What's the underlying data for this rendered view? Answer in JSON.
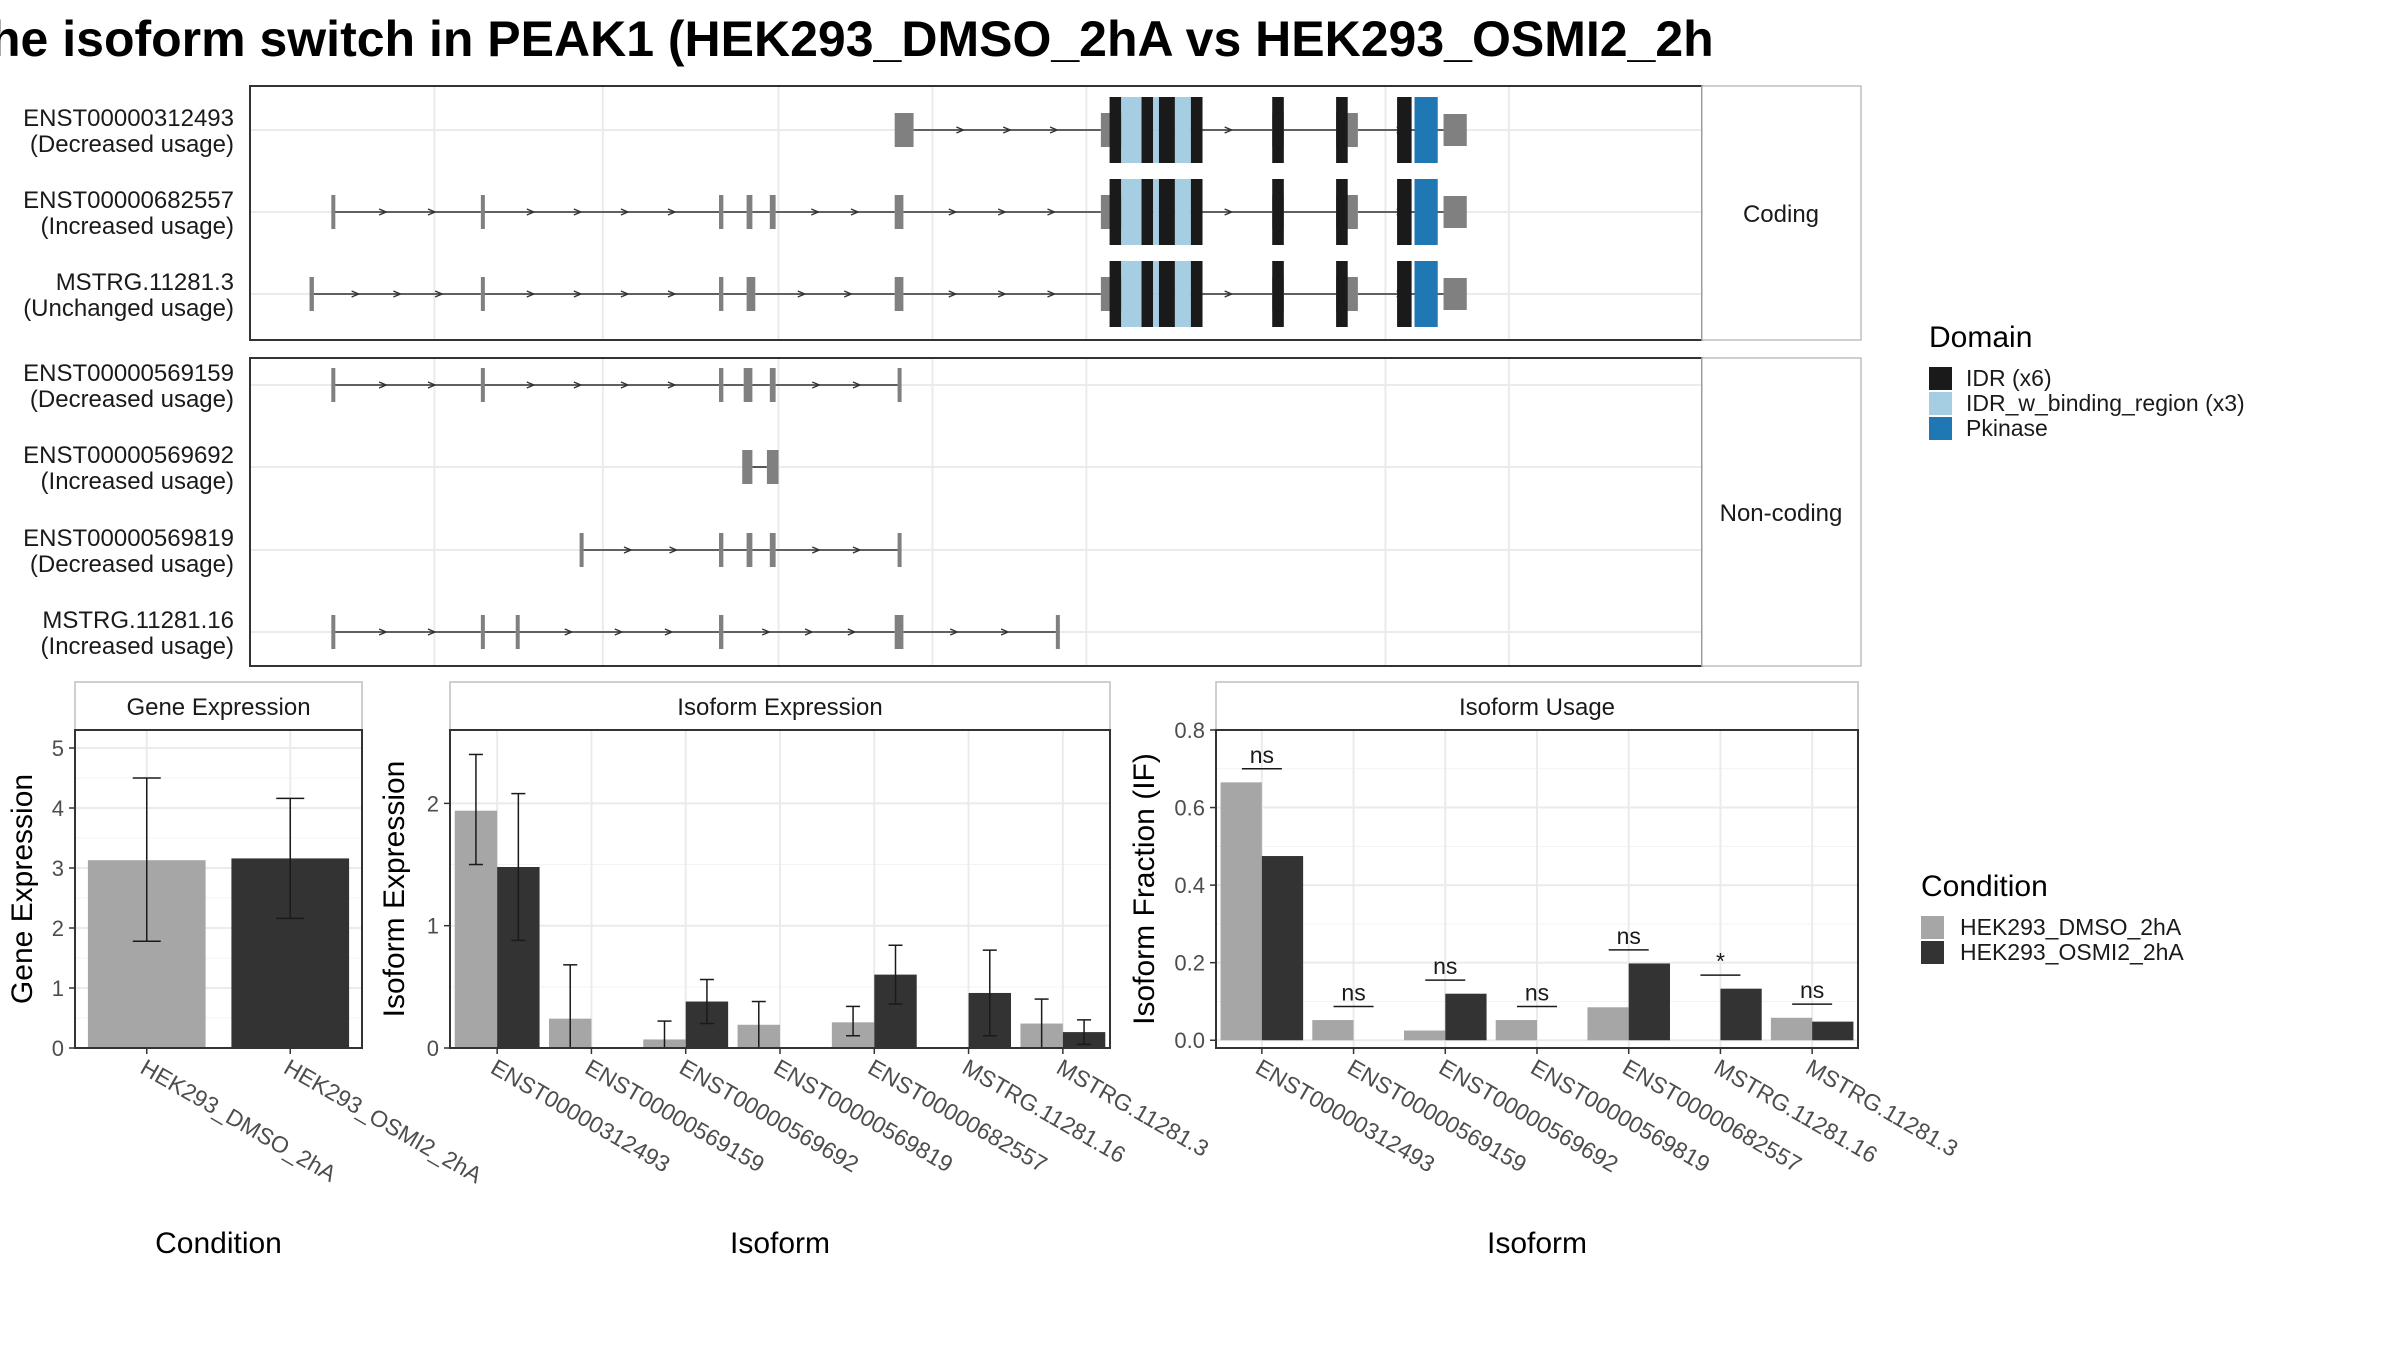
{
  "title": "he isoform switch in PEAK1 (HEK293_DMSO_2hA vs HEK293_OSMI2_2h",
  "colors": {
    "intron": "#333333",
    "exon": "#808080",
    "idr": "#1a1a1a",
    "idr_binding": "#a6cee3",
    "pkinase": "#1f78b4",
    "cond1": "#a6a6a6",
    "cond2": "#333333"
  },
  "chart_data": [
    {
      "type": "gene-structure",
      "coordinate_range": [
        0,
        1000
      ],
      "panels": [
        {
          "strip": "Coding",
          "transcripts": [
            {
              "id": "ENST00000312493",
              "usage": "(Decreased usage)",
              "exons": [
                [
                  444,
                  457
                ],
                [
                  586,
                  614
                ],
                [
                  704,
                  712
                ],
                [
                  748,
                  763
                ],
                [
                  822,
                  838
                ]
              ],
              "introns": [
                [
                  457,
                  586
                ],
                [
                  614,
                  704
                ],
                [
                  712,
                  748
                ],
                [
                  763,
                  822
                ]
              ],
              "domains": [
                {
                  "type": "idr",
                  "s": 592,
                  "e": 600
                },
                {
                  "type": "binding",
                  "s": 600,
                  "e": 614
                },
                {
                  "type": "idr",
                  "s": 614,
                  "e": 622
                },
                {
                  "type": "binding",
                  "s": 622,
                  "e": 626
                },
                {
                  "type": "idr",
                  "s": 626,
                  "e": 637
                },
                {
                  "type": "binding",
                  "s": 637,
                  "e": 648
                },
                {
                  "type": "idr",
                  "s": 648,
                  "e": 656
                },
                {
                  "type": "idr",
                  "s": 704,
                  "e": 712
                },
                {
                  "type": "idr",
                  "s": 748,
                  "e": 756
                },
                {
                  "type": "idr",
                  "s": 790,
                  "e": 800
                },
                {
                  "type": "pkinase",
                  "s": 802,
                  "e": 818
                }
              ]
            },
            {
              "id": "ENST00000682557",
              "usage": "(Increased usage)",
              "exons": [
                [
                  56,
                  58
                ],
                [
                  159,
                  161
                ],
                [
                  323,
                  326
                ],
                [
                  342,
                  346
                ],
                [
                  358,
                  362
                ],
                [
                  444,
                  450
                ],
                [
                  586,
                  614
                ],
                [
                  704,
                  712
                ],
                [
                  748,
                  763
                ],
                [
                  822,
                  838
                ]
              ],
              "introns": [
                [
                  58,
                  159
                ],
                [
                  161,
                  323
                ],
                [
                  326,
                  342
                ],
                [
                  346,
                  358
                ],
                [
                  362,
                  444
                ],
                [
                  450,
                  586
                ],
                [
                  614,
                  704
                ],
                [
                  712,
                  748
                ],
                [
                  763,
                  822
                ]
              ],
              "domains": [
                {
                  "type": "idr",
                  "s": 592,
                  "e": 600
                },
                {
                  "type": "binding",
                  "s": 600,
                  "e": 614
                },
                {
                  "type": "idr",
                  "s": 614,
                  "e": 622
                },
                {
                  "type": "binding",
                  "s": 622,
                  "e": 626
                },
                {
                  "type": "idr",
                  "s": 626,
                  "e": 637
                },
                {
                  "type": "binding",
                  "s": 637,
                  "e": 648
                },
                {
                  "type": "idr",
                  "s": 648,
                  "e": 656
                },
                {
                  "type": "idr",
                  "s": 704,
                  "e": 712
                },
                {
                  "type": "idr",
                  "s": 748,
                  "e": 756
                },
                {
                  "type": "idr",
                  "s": 790,
                  "e": 800
                },
                {
                  "type": "pkinase",
                  "s": 802,
                  "e": 818
                }
              ]
            },
            {
              "id": "MSTRG.11281.3",
              "usage": "(Unchanged usage)",
              "exons": [
                [
                  41,
                  44
                ],
                [
                  159,
                  161
                ],
                [
                  323,
                  326
                ],
                [
                  342,
                  348
                ],
                [
                  444,
                  450
                ],
                [
                  586,
                  614
                ],
                [
                  704,
                  712
                ],
                [
                  748,
                  763
                ],
                [
                  822,
                  838
                ]
              ],
              "introns": [
                [
                  44,
                  159
                ],
                [
                  161,
                  323
                ],
                [
                  326,
                  342
                ],
                [
                  348,
                  444
                ],
                [
                  450,
                  586
                ],
                [
                  614,
                  704
                ],
                [
                  712,
                  748
                ],
                [
                  763,
                  822
                ]
              ],
              "domains": [
                {
                  "type": "idr",
                  "s": 592,
                  "e": 600
                },
                {
                  "type": "binding",
                  "s": 600,
                  "e": 614
                },
                {
                  "type": "idr",
                  "s": 614,
                  "e": 622
                },
                {
                  "type": "binding",
                  "s": 622,
                  "e": 626
                },
                {
                  "type": "idr",
                  "s": 626,
                  "e": 637
                },
                {
                  "type": "binding",
                  "s": 637,
                  "e": 648
                },
                {
                  "type": "idr",
                  "s": 648,
                  "e": 656
                },
                {
                  "type": "idr",
                  "s": 704,
                  "e": 712
                },
                {
                  "type": "idr",
                  "s": 748,
                  "e": 756
                },
                {
                  "type": "idr",
                  "s": 790,
                  "e": 800
                },
                {
                  "type": "pkinase",
                  "s": 802,
                  "e": 818
                }
              ]
            }
          ]
        },
        {
          "strip": "Non-coding",
          "transcripts": [
            {
              "id": "ENST00000569159",
              "usage": "(Decreased usage)",
              "exons": [
                [
                  56,
                  58
                ],
                [
                  159,
                  161
                ],
                [
                  323,
                  326
                ],
                [
                  340,
                  346
                ],
                [
                  358,
                  362
                ],
                [
                  446,
                  448
                ]
              ],
              "introns": [
                [
                  58,
                  159
                ],
                [
                  161,
                  323
                ],
                [
                  326,
                  340
                ],
                [
                  346,
                  358
                ],
                [
                  362,
                  446
                ]
              ],
              "domains": []
            },
            {
              "id": "ENST00000569692",
              "usage": "(Increased usage)",
              "exons": [
                [
                  339,
                  346
                ],
                [
                  356,
                  364
                ]
              ],
              "introns": [
                [
                  346,
                  356
                ]
              ],
              "domains": []
            },
            {
              "id": "ENST00000569819",
              "usage": "(Decreased usage)",
              "exons": [
                [
                  227,
                  229
                ],
                [
                  323,
                  326
                ],
                [
                  342,
                  346
                ],
                [
                  358,
                  362
                ],
                [
                  446,
                  448
                ]
              ],
              "introns": [
                [
                  229,
                  323
                ],
                [
                  326,
                  342
                ],
                [
                  346,
                  358
                ],
                [
                  362,
                  446
                ]
              ],
              "domains": []
            },
            {
              "id": "MSTRG.11281.16",
              "usage": "(Increased usage)",
              "exons": [
                [
                  56,
                  58
                ],
                [
                  159,
                  161
                ],
                [
                  183,
                  185
                ],
                [
                  323,
                  326
                ],
                [
                  444,
                  450
                ],
                [
                  555,
                  557
                ]
              ],
              "introns": [
                [
                  58,
                  159
                ],
                [
                  161,
                  183
                ],
                [
                  185,
                  323
                ],
                [
                  326,
                  444
                ],
                [
                  450,
                  555
                ]
              ],
              "domains": []
            }
          ]
        }
      ],
      "legend": {
        "title": "Domain",
        "position": "right",
        "items": [
          {
            "key": "idr",
            "label": "IDR (x6)"
          },
          {
            "key": "binding",
            "label": "IDR_w_binding_region (x3)"
          },
          {
            "key": "pkinase",
            "label": "Pkinase"
          }
        ]
      }
    },
    {
      "type": "bar",
      "strip": "Gene Expression",
      "categories": [
        "HEK293_DMSO_2hA",
        "HEK293_OSMI2_2hA"
      ],
      "values": [
        3.13,
        3.16
      ],
      "error_low": [
        1.78,
        2.16
      ],
      "error_high": [
        4.5,
        4.16
      ],
      "xlabel": "Condition",
      "ylabel": "Gene Expression",
      "ylim": [
        0,
        5.3
      ],
      "yticks": [
        "0",
        "1",
        "2",
        "3",
        "4",
        "5"
      ],
      "grid": true
    },
    {
      "type": "bar",
      "strip": "Isoform Expression",
      "categories": [
        "ENST00000312493",
        "ENST00000569159",
        "ENST00000569692",
        "ENST00000569819",
        "ENST00000682557",
        "MSTRG.11281.16",
        "MSTRG.11281.3"
      ],
      "series": [
        {
          "name": "HEK293_DMSO_2hA",
          "values": [
            1.94,
            0.24,
            0.07,
            0.19,
            0.21,
            0.0,
            0.2
          ],
          "error_low": [
            1.5,
            0.0,
            0.0,
            0.0,
            0.1,
            0.0,
            0.0
          ],
          "error_high": [
            2.4,
            0.68,
            0.22,
            0.38,
            0.34,
            0.0,
            0.4
          ]
        },
        {
          "name": "HEK293_OSMI2_2hA",
          "values": [
            1.48,
            0.0,
            0.38,
            0.0,
            0.6,
            0.45,
            0.13
          ],
          "error_low": [
            0.88,
            0.0,
            0.2,
            0.0,
            0.36,
            0.1,
            0.03
          ],
          "error_high": [
            2.08,
            0.0,
            0.56,
            0.0,
            0.84,
            0.8,
            0.23
          ]
        }
      ],
      "xlabel": "Isoform",
      "ylabel": "Isoform Expression",
      "ylim": [
        0,
        2.6
      ],
      "yticks": [
        "0",
        "1",
        "2"
      ],
      "grid": true
    },
    {
      "type": "bar",
      "strip": "Isoform Usage",
      "categories": [
        "ENST00000312493",
        "ENST00000569159",
        "ENST00000569692",
        "ENST00000569819",
        "ENST00000682557",
        "MSTRG.11281.16",
        "MSTRG.11281.3"
      ],
      "series": [
        {
          "name": "HEK293_DMSO_2hA",
          "values": [
            0.665,
            0.052,
            0.025,
            0.052,
            0.085,
            0.0,
            0.058
          ]
        },
        {
          "name": "HEK293_OSMI2_2hA",
          "values": [
            0.475,
            0.0,
            0.12,
            0.0,
            0.198,
            0.133,
            0.048
          ]
        }
      ],
      "significance": [
        {
          "label": "ns",
          "y": 0.7
        },
        {
          "label": "ns",
          "y": 0.087
        },
        {
          "label": "ns",
          "y": 0.155
        },
        {
          "label": "ns",
          "y": 0.087
        },
        {
          "label": "ns",
          "y": 0.233
        },
        {
          "label": "*",
          "y": 0.168
        },
        {
          "label": "ns",
          "y": 0.093
        }
      ],
      "xlabel": "Isoform",
      "ylabel": "Isoform Fraction (IF)",
      "ylim": [
        -0.02,
        0.8
      ],
      "yticks": [
        "0.0",
        "0.2",
        "0.4",
        "0.6",
        "0.8"
      ],
      "grid": true,
      "legend": {
        "title": "Condition",
        "position": "right",
        "items": [
          "HEK293_DMSO_2hA",
          "HEK293_OSMI2_2hA"
        ]
      }
    }
  ]
}
